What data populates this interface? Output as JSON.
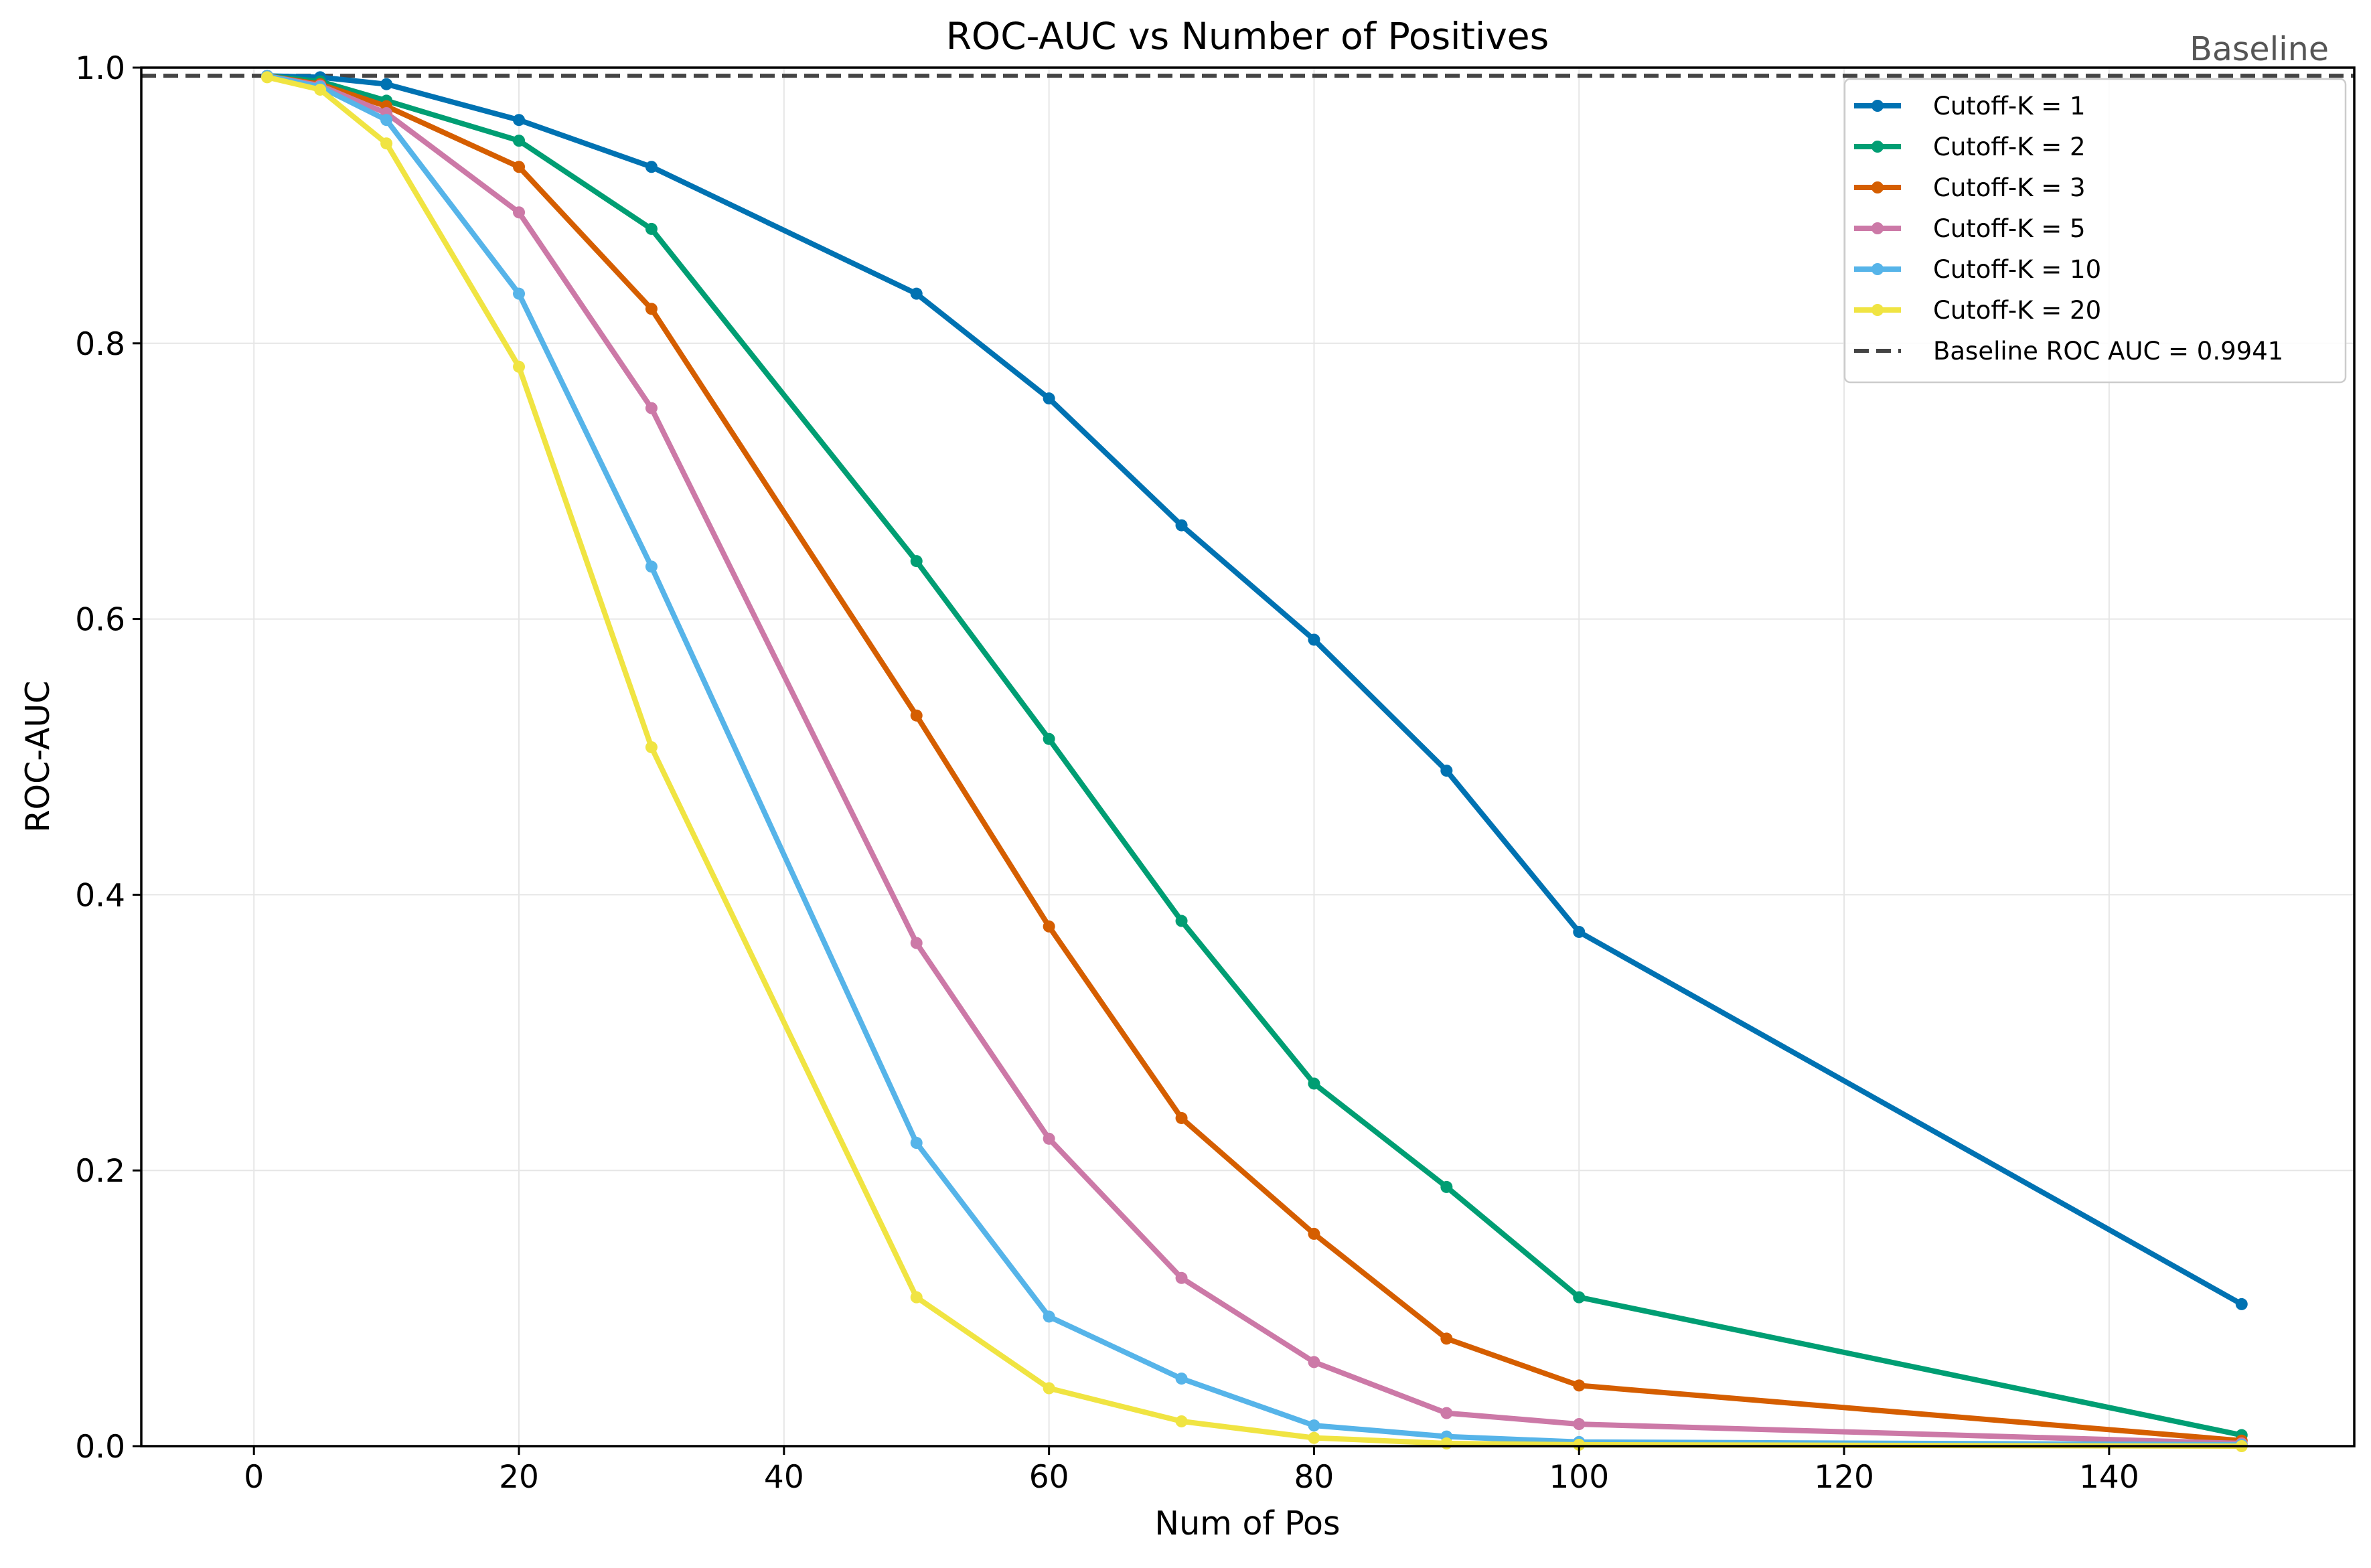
{
  "chart_data": {
    "type": "line",
    "title": "ROC-AUC vs Number of Positives",
    "xlabel": "Num of Pos",
    "ylabel": "ROC-AUC",
    "xlim": [
      -8.5,
      158.5
    ],
    "ylim": [
      0.0,
      1.0
    ],
    "x_ticks": [
      0,
      20,
      40,
      60,
      80,
      100,
      120,
      140
    ],
    "y_ticks": [
      0.0,
      0.2,
      0.4,
      0.6,
      0.8,
      1.0
    ],
    "x_tick_labels": [
      "0",
      "20",
      "40",
      "60",
      "80",
      "100",
      "120",
      "140"
    ],
    "y_tick_labels": [
      "0.0",
      "0.2",
      "0.4",
      "0.6",
      "0.8",
      "1.0"
    ],
    "grid": true,
    "legend_position": "top-right",
    "x": [
      1,
      5,
      10,
      20,
      30,
      50,
      60,
      70,
      80,
      90,
      100,
      150
    ],
    "series": [
      {
        "name": "Cutoff-K = 1",
        "color": "#0072B2",
        "values": [
          0.994,
          0.993,
          0.988,
          0.962,
          0.928,
          0.836,
          0.76,
          0.668,
          0.585,
          0.49,
          0.373,
          0.103
        ]
      },
      {
        "name": "Cutoff-K = 2",
        "color": "#009E73",
        "values": [
          0.994,
          0.99,
          0.976,
          0.947,
          0.883,
          0.642,
          0.513,
          0.381,
          0.263,
          0.188,
          0.108,
          0.008
        ]
      },
      {
        "name": "Cutoff-K = 3",
        "color": "#D55E00",
        "values": [
          0.994,
          0.988,
          0.972,
          0.928,
          0.825,
          0.53,
          0.377,
          0.238,
          0.154,
          0.078,
          0.044,
          0.004
        ]
      },
      {
        "name": "Cutoff-K = 5",
        "color": "#CC79A7",
        "values": [
          0.994,
          0.987,
          0.967,
          0.895,
          0.753,
          0.365,
          0.223,
          0.122,
          0.061,
          0.024,
          0.016,
          0.002
        ]
      },
      {
        "name": "Cutoff-K = 10",
        "color": "#56B4E9",
        "values": [
          0.994,
          0.986,
          0.962,
          0.836,
          0.638,
          0.22,
          0.094,
          0.049,
          0.015,
          0.007,
          0.003,
          0.001
        ]
      },
      {
        "name": "Cutoff-K = 20",
        "color": "#F0E442",
        "values": [
          0.993,
          0.984,
          0.945,
          0.783,
          0.507,
          0.108,
          0.042,
          0.018,
          0.006,
          0.002,
          0.001,
          0.0
        ]
      }
    ],
    "baseline": {
      "value": 0.9941,
      "legend_label": "Baseline ROC AUC = 0.9941",
      "annotation": "Baseline",
      "color": "#444444"
    }
  }
}
